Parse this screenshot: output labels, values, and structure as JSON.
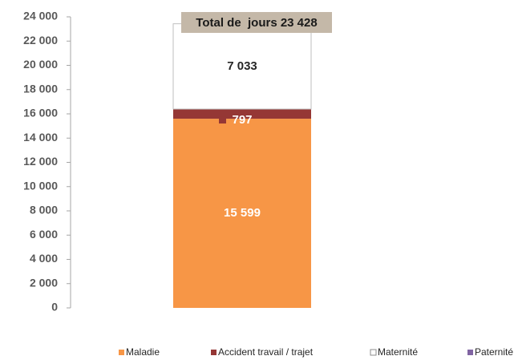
{
  "chart_data": {
    "type": "stacked_bar",
    "annotation": "Total de  jours 23 428",
    "categories": [
      null
    ],
    "series": [
      {
        "name": "Maladie",
        "color": "#f79646",
        "values": [
          15599
        ],
        "value_labels": [
          "15 599"
        ]
      },
      {
        "name": "Accident travail / trajet",
        "color": "#953735",
        "values": [
          797
        ],
        "value_labels": [
          "797"
        ]
      },
      {
        "name": "Maternité",
        "color": "#ffffff",
        "values": [
          7033
        ],
        "value_labels": [
          "7 033"
        ]
      },
      {
        "name": "Paternité",
        "color": "#8064a2",
        "values": [
          0
        ]
      }
    ],
    "ylim": [
      0,
      24000
    ],
    "yticks": [
      0,
      {
        "value": 2000,
        "label": "2 000"
      },
      {
        "value": 4000,
        "label": "4 000"
      },
      {
        "value": 6000,
        "label": "6 000"
      },
      {
        "value": 8000,
        "label": "8 000"
      },
      {
        "value": 10000,
        "label": "10 000"
      },
      {
        "value": 12000,
        "label": "12 000"
      },
      {
        "value": 14000,
        "label": "14 000"
      },
      {
        "value": 16000,
        "label": "16 000"
      },
      {
        "value": 18000,
        "label": "18 000"
      },
      {
        "value": 20000,
        "label": "20 000"
      },
      {
        "value": 22000,
        "label": "22 000"
      },
      {
        "value": 24000,
        "label": "24 000"
      }
    ],
    "legend": "bottom"
  }
}
